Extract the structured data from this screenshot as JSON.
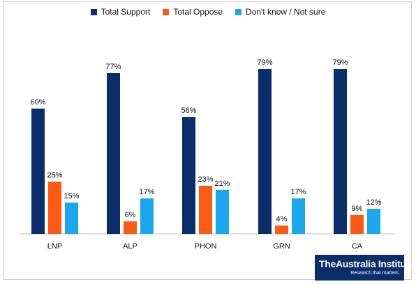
{
  "colors": {
    "support": "#0a2d6b",
    "oppose": "#ff5a14",
    "dontknow": "#19a7ee",
    "axis": "#bdbdbd"
  },
  "legend": [
    {
      "label": "Total Support",
      "color": "#0a2d6b"
    },
    {
      "label": "Total Oppose",
      "color": "#ff5a14"
    },
    {
      "label": "Don't know / Not sure",
      "color": "#19a7ee"
    }
  ],
  "logo": {
    "main": "TheAustralia Institute",
    "sub": "Research that matters."
  },
  "chart_data": {
    "type": "bar",
    "title": "",
    "xlabel": "",
    "ylabel": "",
    "ylim": [
      0,
      100
    ],
    "grid": false,
    "legend_position": "top",
    "categories": [
      "LNP",
      "ALP",
      "PHON",
      "GRN",
      "CA"
    ],
    "series": [
      {
        "name": "Total Support",
        "color": "#0a2d6b",
        "values": [
          60,
          77,
          56,
          79,
          79
        ],
        "labels": [
          "60%",
          "77%",
          "56%",
          "79%",
          "79%"
        ]
      },
      {
        "name": "Total Oppose",
        "color": "#ff5a14",
        "values": [
          25,
          6,
          23,
          4,
          9
        ],
        "labels": [
          "25%",
          "6%",
          "23%",
          "4%",
          "9%"
        ]
      },
      {
        "name": "Don't know / Not sure",
        "color": "#19a7ee",
        "values": [
          15,
          17,
          21,
          17,
          12
        ],
        "labels": [
          "15%",
          "17%",
          "21%",
          "17%",
          "12%"
        ]
      }
    ]
  }
}
